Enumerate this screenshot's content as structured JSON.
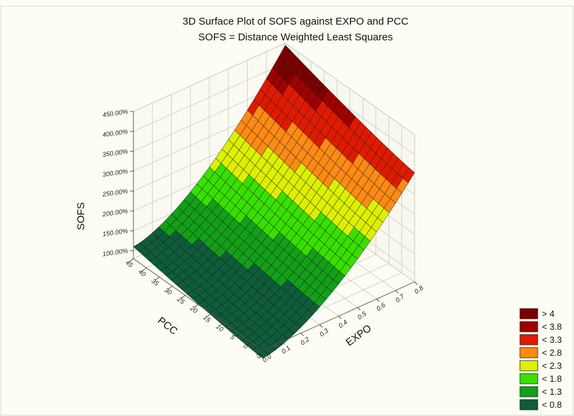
{
  "chart_data": {
    "type": "surface3d",
    "title": "3D Surface Plot of SOFS against EXPO and PCC",
    "subtitle": "SOFS = Distance Weighted Least Squares",
    "xlabel": "EXPO",
    "ylabel": "PCC",
    "zlabel": "SOFS",
    "x_ticks": [
      "0.0",
      "0.1",
      "0.2",
      "0.3",
      "0.4",
      "0.5",
      "0.6",
      "0.7",
      "0.8"
    ],
    "y_ticks": [
      "-5",
      "0",
      "5",
      "10",
      "15",
      "20",
      "25",
      "30",
      "35",
      "40",
      "45"
    ],
    "z_ticks": [
      "100.00%",
      "150.00%",
      "200.00%",
      "250.00%",
      "300.00%",
      "350.00%",
      "400.00%",
      "450.00%"
    ],
    "xlim": [
      0,
      0.8
    ],
    "ylim": [
      -5,
      45
    ],
    "zlim": [
      0.8,
      4.5
    ],
    "surface_corners": {
      "expo_0.0_pcc_-5": 0.6,
      "expo_0.0_pcc_45": 1.1,
      "expo_0.8_pcc_-5": 3.55,
      "expo_0.8_pcc_45": 4.45
    },
    "legend": {
      "position": "bottom-right",
      "items": [
        {
          "label": "> 4",
          "color": "#7a0000"
        },
        {
          "label": "< 3.8",
          "color": "#9e0000"
        },
        {
          "label": "< 3.3",
          "color": "#e01a00"
        },
        {
          "label": "< 2.8",
          "color": "#ff8a14"
        },
        {
          "label": "< 2.3",
          "color": "#ddf000"
        },
        {
          "label": "< 1.8",
          "color": "#38e000"
        },
        {
          "label": "< 1.3",
          "color": "#12a018"
        },
        {
          "label": "< 0.8",
          "color": "#0e5c3a"
        }
      ]
    },
    "grid": true
  }
}
